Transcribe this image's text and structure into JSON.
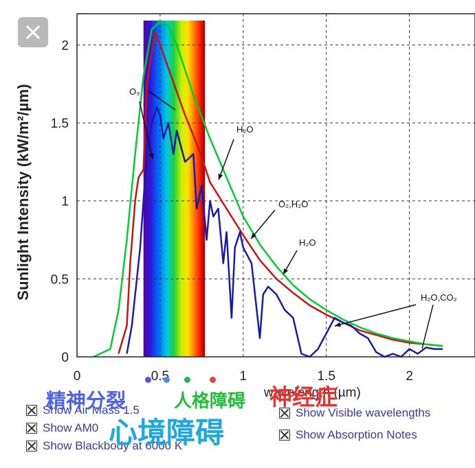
{
  "close_icon": "close-icon",
  "chart_data": {
    "type": "line",
    "xlabel": "wavelength (µm)",
    "ylabel": "Sunlight Intensity (kW/m²/µm)",
    "xlim": [
      0,
      2.2
    ],
    "ylim": [
      0,
      2.2
    ],
    "x_ticks": [
      "0",
      "0.5",
      "1",
      "1.5",
      "2"
    ],
    "y_ticks": [
      "0",
      "0.5",
      "1",
      "1.5",
      "2"
    ],
    "grid": true,
    "visible_band": [
      0.4,
      0.77
    ],
    "series": [
      {
        "color": "#00cc33",
        "x": [
          0.1,
          0.2,
          0.25,
          0.3,
          0.35,
          0.4,
          0.45,
          0.5,
          0.55,
          0.6,
          0.7,
          0.8,
          0.9,
          1.0,
          1.1,
          1.2,
          1.3,
          1.4,
          1.5,
          1.6,
          1.7,
          1.8,
          1.9,
          2.0,
          2.1,
          2.2
        ],
        "y": [
          0.0,
          0.05,
          0.3,
          0.75,
          1.3,
          1.8,
          2.1,
          2.15,
          2.12,
          2.0,
          1.68,
          1.4,
          1.15,
          0.9,
          0.72,
          0.58,
          0.46,
          0.37,
          0.3,
          0.24,
          0.19,
          0.15,
          0.12,
          0.1,
          0.08,
          0.07
        ]
      },
      {
        "color": "#cc1111",
        "x": [
          0.25,
          0.3,
          0.32,
          0.35,
          0.37,
          0.4,
          0.42,
          0.45,
          0.47,
          0.5,
          0.55,
          0.6,
          0.65,
          0.7,
          0.75,
          0.8,
          0.9,
          1.0,
          1.1,
          1.2,
          1.3,
          1.4,
          1.5,
          1.6,
          1.7,
          1.8,
          1.9,
          2.0,
          2.1,
          2.2
        ],
        "y": [
          0.02,
          0.2,
          0.6,
          1.0,
          1.15,
          1.2,
          1.75,
          1.95,
          2.08,
          2.0,
          1.85,
          1.7,
          1.55,
          1.42,
          1.28,
          1.12,
          0.95,
          0.78,
          0.62,
          0.5,
          0.41,
          0.33,
          0.27,
          0.22,
          0.17,
          0.14,
          0.11,
          0.09,
          0.08,
          0.07
        ]
      },
      {
        "color": "#1a1aaa",
        "x": [
          0.3,
          0.33,
          0.36,
          0.38,
          0.4,
          0.42,
          0.45,
          0.48,
          0.5,
          0.52,
          0.55,
          0.58,
          0.6,
          0.65,
          0.7,
          0.72,
          0.75,
          0.78,
          0.8,
          0.82,
          0.85,
          0.88,
          0.9,
          0.93,
          0.95,
          0.98,
          1.0,
          1.05,
          1.1,
          1.12,
          1.15,
          1.2,
          1.25,
          1.3,
          1.35,
          1.4,
          1.45,
          1.5,
          1.55,
          1.6,
          1.65,
          1.7,
          1.75,
          1.8,
          1.85,
          1.9,
          1.95,
          2.0,
          2.05,
          2.1,
          2.15,
          2.2
        ],
        "y": [
          0.02,
          0.2,
          0.5,
          0.7,
          1.0,
          1.3,
          1.5,
          1.6,
          1.55,
          1.4,
          1.5,
          1.3,
          1.45,
          1.25,
          1.3,
          0.95,
          1.1,
          0.75,
          1.0,
          0.9,
          0.95,
          0.6,
          0.8,
          0.25,
          0.7,
          0.8,
          0.7,
          0.6,
          0.12,
          0.4,
          0.45,
          0.4,
          0.3,
          0.25,
          0.02,
          0.0,
          0.05,
          0.15,
          0.25,
          0.22,
          0.2,
          0.15,
          0.12,
          0.03,
          0.0,
          0.02,
          0.0,
          0.05,
          0.02,
          0.06,
          0.05,
          0.05
        ]
      }
    ],
    "annotations": [
      "O₃",
      "H₂O",
      "O₂,H₂O",
      "H₂O",
      "H₂O,CO₂"
    ]
  },
  "options_left": [
    "Show Air Mass 1.5",
    "Show AM0",
    "Show Blackbody at 6000 K"
  ],
  "options_right": [
    "Show Visible wavelengths",
    "Show Absorption Notes"
  ],
  "overlays": {
    "o1": "精神分裂",
    "o2": "人格障碍",
    "o3": "神经症",
    "o4": "心境障碍"
  },
  "colors": {
    "green": "#00cc33",
    "red": "#cc1111",
    "blue": "#1a1aaa",
    "overlay_blue": "#4f63e6",
    "overlay_green": "#1fbf3a",
    "overlay_red": "#e5342f",
    "overlay_cyan": "#21a7e0"
  }
}
